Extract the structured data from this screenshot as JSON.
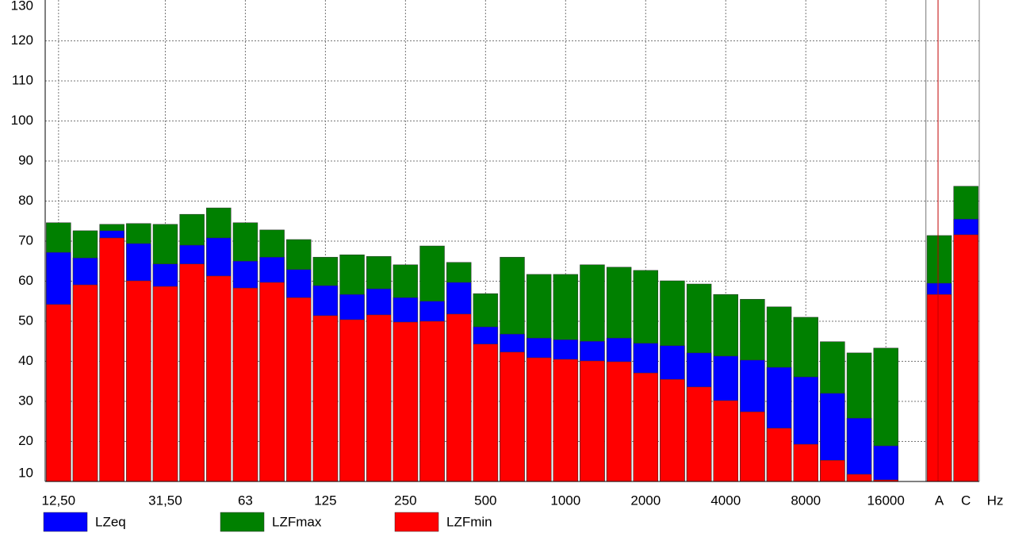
{
  "chart_data": {
    "type": "bar",
    "overlap": true,
    "xlabel": "Hz",
    "categories": [
      "12,50",
      null,
      null,
      null,
      "31,50",
      null,
      null,
      "63",
      null,
      null,
      "125",
      null,
      null,
      "250",
      null,
      null,
      "500",
      null,
      null,
      "1000",
      null,
      null,
      "2000",
      null,
      null,
      "4000",
      null,
      null,
      "8000",
      null,
      null,
      "16000",
      null,
      "A",
      "C"
    ],
    "series": [
      {
        "name": "LZFmax",
        "color": "#008000",
        "values": [
          74.6,
          72.6,
          74.2,
          74.4,
          74.2,
          76.7,
          78.3,
          74.6,
          72.8,
          70.4,
          66.0,
          66.6,
          66.2,
          64.1,
          68.8,
          64.7,
          56.9,
          66.0,
          61.7,
          61.7,
          64.1,
          63.5,
          62.7,
          60.1,
          59.3,
          56.7,
          55.5,
          53.6,
          51.0,
          44.9,
          42.1,
          43.3,
          null,
          71.4,
          83.7
        ]
      },
      {
        "name": "LZeq",
        "color": "#0000ff",
        "values": [
          67.2,
          65.8,
          72.6,
          69.4,
          64.3,
          69.0,
          70.8,
          65.0,
          66.0,
          62.9,
          58.9,
          56.7,
          58.1,
          55.9,
          55.0,
          59.7,
          48.6,
          46.8,
          45.8,
          45.4,
          45.0,
          45.8,
          44.5,
          43.9,
          42.1,
          41.3,
          40.3,
          38.5,
          36.1,
          32.0,
          25.8,
          18.9,
          null,
          59.5,
          75.5
        ]
      },
      {
        "name": "LZFmin",
        "color": "#ff0000",
        "values": [
          54.2,
          59.1,
          70.8,
          60.1,
          58.7,
          64.3,
          61.3,
          58.3,
          59.7,
          55.9,
          51.4,
          50.4,
          51.6,
          49.8,
          50.0,
          51.8,
          44.3,
          42.3,
          40.9,
          40.5,
          40.1,
          39.9,
          37.1,
          35.5,
          33.6,
          30.2,
          27.4,
          23.3,
          19.3,
          15.3,
          11.8,
          10.4,
          null,
          56.7,
          71.6
        ]
      }
    ],
    "legend_order": [
      "LZeq",
      "LZFmax",
      "LZFmin"
    ],
    "ylim": [
      10,
      130
    ],
    "yticks": [
      10,
      20,
      30,
      40,
      50,
      60,
      70,
      80,
      90,
      100,
      110,
      120,
      130
    ],
    "grid": true
  }
}
